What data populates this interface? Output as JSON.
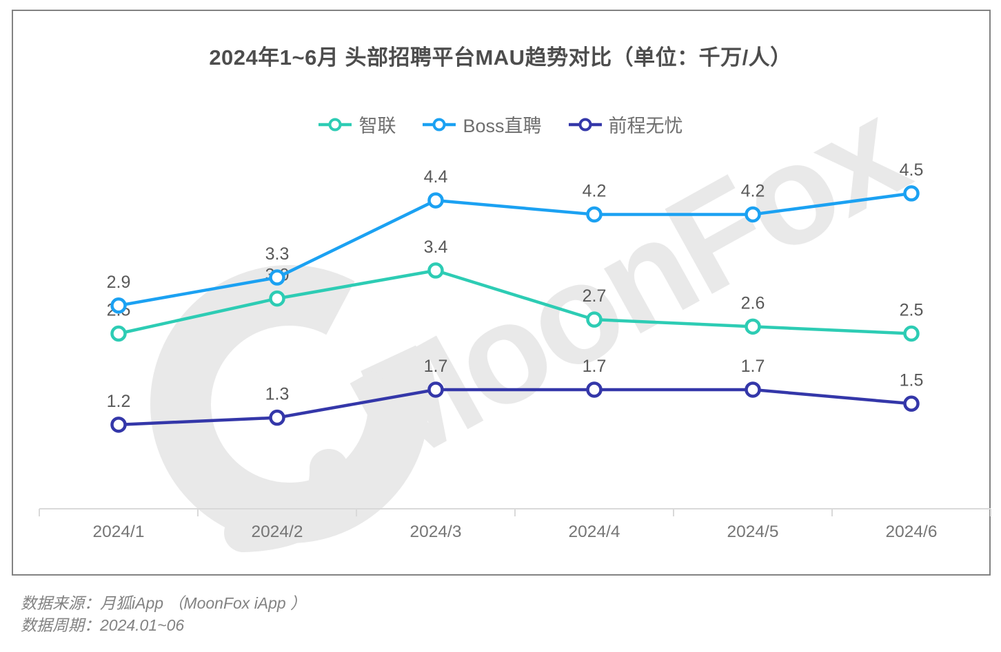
{
  "title": "2024年1~6月 头部招聘平台MAU趋势对比（单位：千万/人）",
  "chart_data": {
    "type": "line",
    "categories": [
      "2024/1",
      "2024/2",
      "2024/3",
      "2024/4",
      "2024/5",
      "2024/6"
    ],
    "series": [
      {
        "name": "智联",
        "color": "#2dccb4",
        "values": [
          2.5,
          3.0,
          3.4,
          2.7,
          2.6,
          2.5
        ]
      },
      {
        "name": "Boss直聘",
        "color": "#1ba1f2",
        "values": [
          2.9,
          3.3,
          4.4,
          4.2,
          4.2,
          4.5
        ]
      },
      {
        "name": "前程无忧",
        "color": "#3437a9",
        "values": [
          1.2,
          1.3,
          1.7,
          1.7,
          1.7,
          1.5
        ]
      }
    ],
    "ylim": [
      0,
      5
    ],
    "grid": false,
    "legend_position": "top",
    "value_labels": true,
    "value_label_color": "#595959",
    "axis_line_color": "#d9d9d9",
    "tick_label_color": "#757575"
  },
  "watermark": {
    "text": "MoonFox",
    "logo": "moonfox-crescent-logo",
    "color": "#e9e9e9"
  },
  "footer": {
    "source": "数据来源：月狐iApp （MoonFox iApp ）",
    "period": "数据周期：2024.01~06"
  }
}
